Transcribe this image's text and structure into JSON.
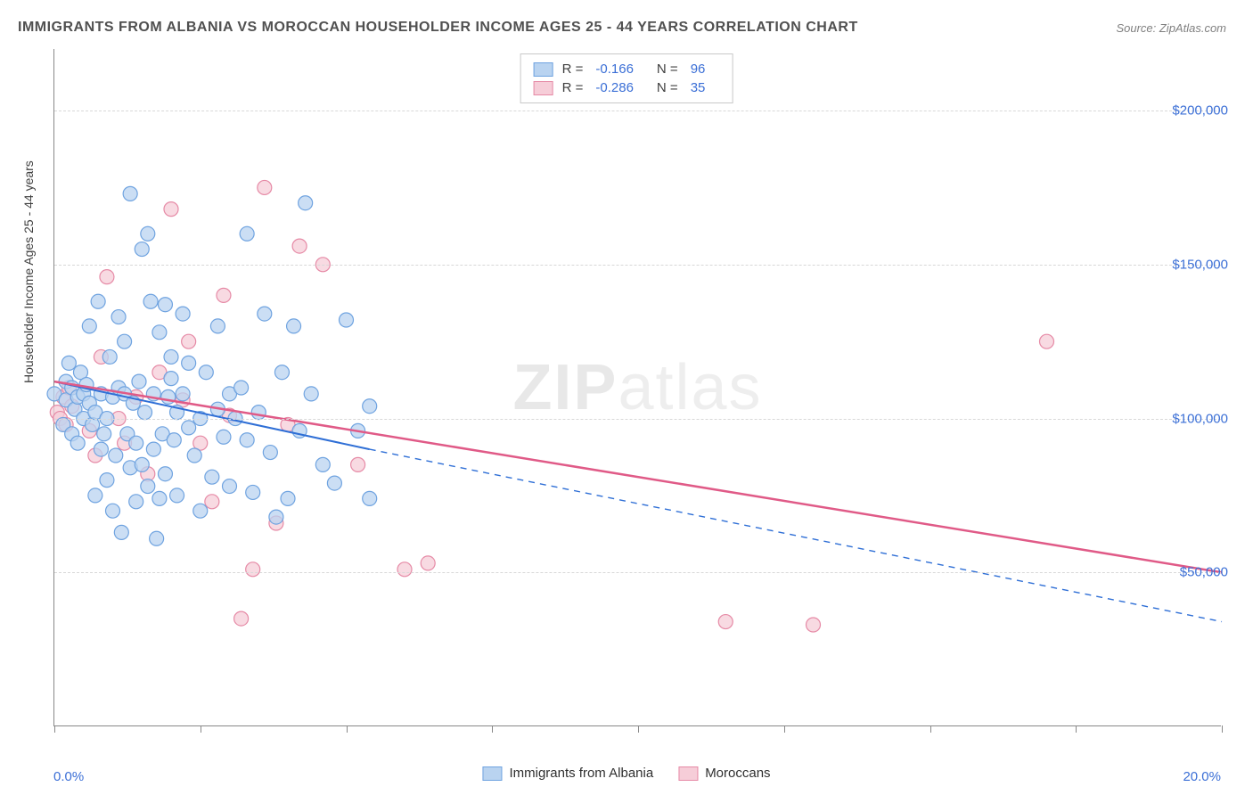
{
  "title": "IMMIGRANTS FROM ALBANIA VS MOROCCAN HOUSEHOLDER INCOME AGES 25 - 44 YEARS CORRELATION CHART",
  "source": "Source: ZipAtlas.com",
  "watermark_a": "ZIP",
  "watermark_b": "atlas",
  "chart": {
    "type": "scatter",
    "xlim": [
      0.0,
      20.0
    ],
    "ylim": [
      0,
      220000
    ],
    "x_min_label": "0.0%",
    "x_max_label": "20.0%",
    "y_ticks": [
      50000,
      100000,
      150000,
      200000
    ],
    "y_tick_labels": [
      "$50,000",
      "$100,000",
      "$150,000",
      "$200,000"
    ],
    "x_tick_positions": [
      0,
      2.5,
      5,
      7.5,
      10,
      12.5,
      15,
      17.5,
      20
    ],
    "ylabel": "Householder Income Ages 25 - 44 years",
    "background_color": "#ffffff",
    "grid_color": "#d8d8d8",
    "series": [
      {
        "name": "Immigrants from Albania",
        "color_fill": "#b9d3f0",
        "color_stroke": "#6fa3e0",
        "r_label": "R =",
        "r_value": "-0.166",
        "n_label": "N =",
        "n_value": "96",
        "trend": {
          "x1": 0.0,
          "y1": 112000,
          "x2": 5.4,
          "y2": 90000,
          "solid_until_x": 5.4,
          "dash_to_x": 20.0,
          "dash_to_y": 34000,
          "stroke": "#2f6fd6",
          "width": 2
        },
        "marker_radius": 8,
        "points": [
          [
            0.0,
            108000
          ],
          [
            0.15,
            98000
          ],
          [
            0.2,
            112000
          ],
          [
            0.2,
            106000
          ],
          [
            0.25,
            118000
          ],
          [
            0.3,
            110000
          ],
          [
            0.3,
            95000
          ],
          [
            0.35,
            103000
          ],
          [
            0.4,
            107000
          ],
          [
            0.4,
            92000
          ],
          [
            0.45,
            115000
          ],
          [
            0.5,
            108000
          ],
          [
            0.5,
            100000
          ],
          [
            0.55,
            111000
          ],
          [
            0.6,
            105000
          ],
          [
            0.6,
            130000
          ],
          [
            0.65,
            98000
          ],
          [
            0.7,
            102000
          ],
          [
            0.7,
            75000
          ],
          [
            0.75,
            138000
          ],
          [
            0.8,
            108000
          ],
          [
            0.8,
            90000
          ],
          [
            0.85,
            95000
          ],
          [
            0.9,
            100000
          ],
          [
            0.9,
            80000
          ],
          [
            0.95,
            120000
          ],
          [
            1.0,
            107000
          ],
          [
            1.0,
            70000
          ],
          [
            1.05,
            88000
          ],
          [
            1.1,
            110000
          ],
          [
            1.1,
            133000
          ],
          [
            1.15,
            63000
          ],
          [
            1.2,
            108000
          ],
          [
            1.2,
            125000
          ],
          [
            1.25,
            95000
          ],
          [
            1.3,
            173000
          ],
          [
            1.3,
            84000
          ],
          [
            1.35,
            105000
          ],
          [
            1.4,
            73000
          ],
          [
            1.4,
            92000
          ],
          [
            1.45,
            112000
          ],
          [
            1.5,
            155000
          ],
          [
            1.5,
            85000
          ],
          [
            1.55,
            102000
          ],
          [
            1.6,
            78000
          ],
          [
            1.6,
            160000
          ],
          [
            1.65,
            138000
          ],
          [
            1.7,
            108000
          ],
          [
            1.7,
            90000
          ],
          [
            1.75,
            61000
          ],
          [
            1.8,
            128000
          ],
          [
            1.8,
            74000
          ],
          [
            1.85,
            95000
          ],
          [
            1.9,
            137000
          ],
          [
            1.9,
            82000
          ],
          [
            1.95,
            107000
          ],
          [
            2.0,
            120000
          ],
          [
            2.0,
            113000
          ],
          [
            2.05,
            93000
          ],
          [
            2.1,
            102000
          ],
          [
            2.1,
            75000
          ],
          [
            2.2,
            108000
          ],
          [
            2.2,
            134000
          ],
          [
            2.3,
            97000
          ],
          [
            2.3,
            118000
          ],
          [
            2.4,
            88000
          ],
          [
            2.5,
            100000
          ],
          [
            2.5,
            70000
          ],
          [
            2.6,
            115000
          ],
          [
            2.7,
            81000
          ],
          [
            2.8,
            103000
          ],
          [
            2.8,
            130000
          ],
          [
            2.9,
            94000
          ],
          [
            3.0,
            108000
          ],
          [
            3.0,
            78000
          ],
          [
            3.1,
            100000
          ],
          [
            3.2,
            110000
          ],
          [
            3.3,
            93000
          ],
          [
            3.3,
            160000
          ],
          [
            3.4,
            76000
          ],
          [
            3.5,
            102000
          ],
          [
            3.6,
            134000
          ],
          [
            3.7,
            89000
          ],
          [
            3.8,
            68000
          ],
          [
            3.9,
            115000
          ],
          [
            4.0,
            74000
          ],
          [
            4.1,
            130000
          ],
          [
            4.2,
            96000
          ],
          [
            4.4,
            108000
          ],
          [
            4.6,
            85000
          ],
          [
            4.8,
            79000
          ],
          [
            5.0,
            132000
          ],
          [
            5.2,
            96000
          ],
          [
            5.4,
            74000
          ],
          [
            5.4,
            104000
          ],
          [
            4.3,
            170000
          ]
        ]
      },
      {
        "name": "Moroccans",
        "color_fill": "#f6cdd8",
        "color_stroke": "#e68aa6",
        "r_label": "R =",
        "r_value": "-0.286",
        "n_label": "N =",
        "n_value": "35",
        "trend": {
          "x1": 0.0,
          "y1": 112000,
          "x2": 20.0,
          "y2": 50000,
          "stroke": "#e05a87",
          "width": 2.5
        },
        "marker_radius": 8,
        "points": [
          [
            0.05,
            102000
          ],
          [
            0.1,
            100000
          ],
          [
            0.15,
            107000
          ],
          [
            0.2,
            98000
          ],
          [
            0.25,
            110000
          ],
          [
            0.3,
            104000
          ],
          [
            0.6,
            96000
          ],
          [
            0.7,
            88000
          ],
          [
            0.8,
            120000
          ],
          [
            0.9,
            146000
          ],
          [
            1.1,
            100000
          ],
          [
            1.2,
            92000
          ],
          [
            1.4,
            107000
          ],
          [
            1.6,
            82000
          ],
          [
            1.8,
            115000
          ],
          [
            2.0,
            168000
          ],
          [
            2.2,
            106000
          ],
          [
            2.3,
            125000
          ],
          [
            2.5,
            92000
          ],
          [
            2.7,
            73000
          ],
          [
            2.9,
            140000
          ],
          [
            3.0,
            101000
          ],
          [
            3.2,
            35000
          ],
          [
            3.4,
            51000
          ],
          [
            3.6,
            175000
          ],
          [
            3.8,
            66000
          ],
          [
            4.0,
            98000
          ],
          [
            4.2,
            156000
          ],
          [
            4.6,
            150000
          ],
          [
            5.2,
            85000
          ],
          [
            6.0,
            51000
          ],
          [
            6.4,
            53000
          ],
          [
            11.5,
            34000
          ],
          [
            13.0,
            33000
          ],
          [
            17.0,
            125000
          ]
        ]
      }
    ]
  }
}
